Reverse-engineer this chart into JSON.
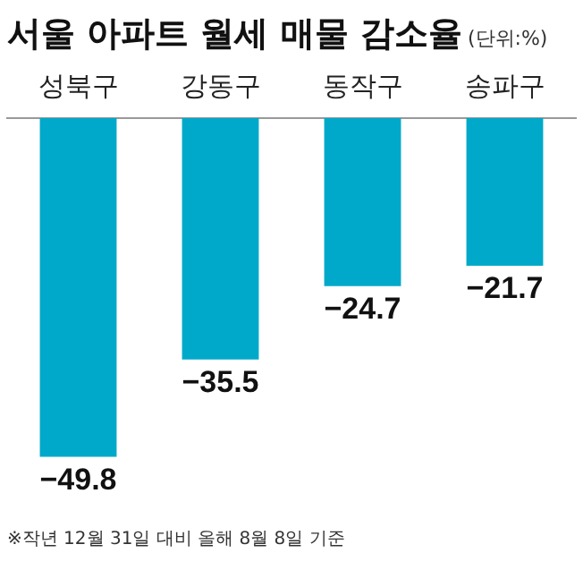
{
  "chart_data": {
    "type": "bar",
    "title": "서울 아파트 월세 매물 감소율",
    "subtitle": "(단위:%)",
    "categories": [
      "성북구",
      "강동구",
      "동작구",
      "송파구"
    ],
    "values": [
      -49.8,
      -35.5,
      -24.7,
      -21.7
    ],
    "color": "#00a9c9",
    "data_labels": true,
    "grid": false,
    "legend": false,
    "annotations": [
      "※작년 12월 31일 대비 올해 8월 8일 기준"
    ]
  }
}
